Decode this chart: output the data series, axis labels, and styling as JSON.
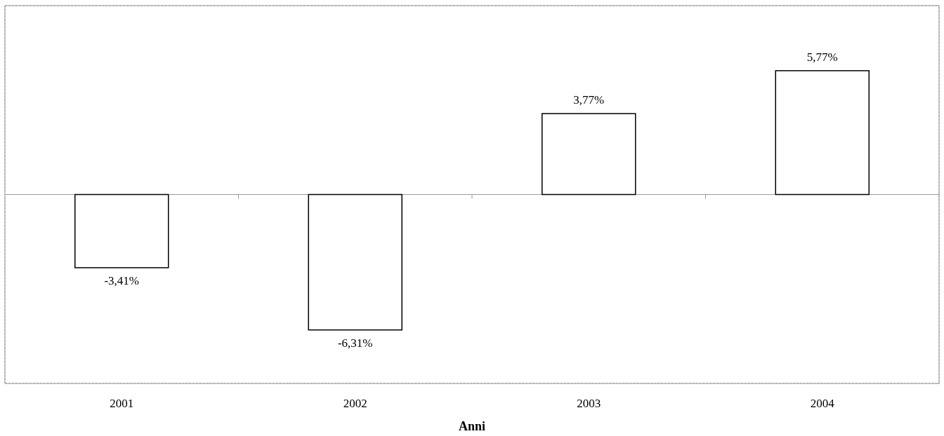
{
  "chart_data": {
    "type": "bar",
    "xlabel": "Anni",
    "categories": [
      "2001",
      "2002",
      "2003",
      "2004"
    ],
    "values": [
      -3.41,
      -6.31,
      3.77,
      5.77
    ],
    "value_labels": [
      "-3,41%",
      "-6,31%",
      "3,77%",
      "5,77%"
    ],
    "color": "#ffffff"
  }
}
